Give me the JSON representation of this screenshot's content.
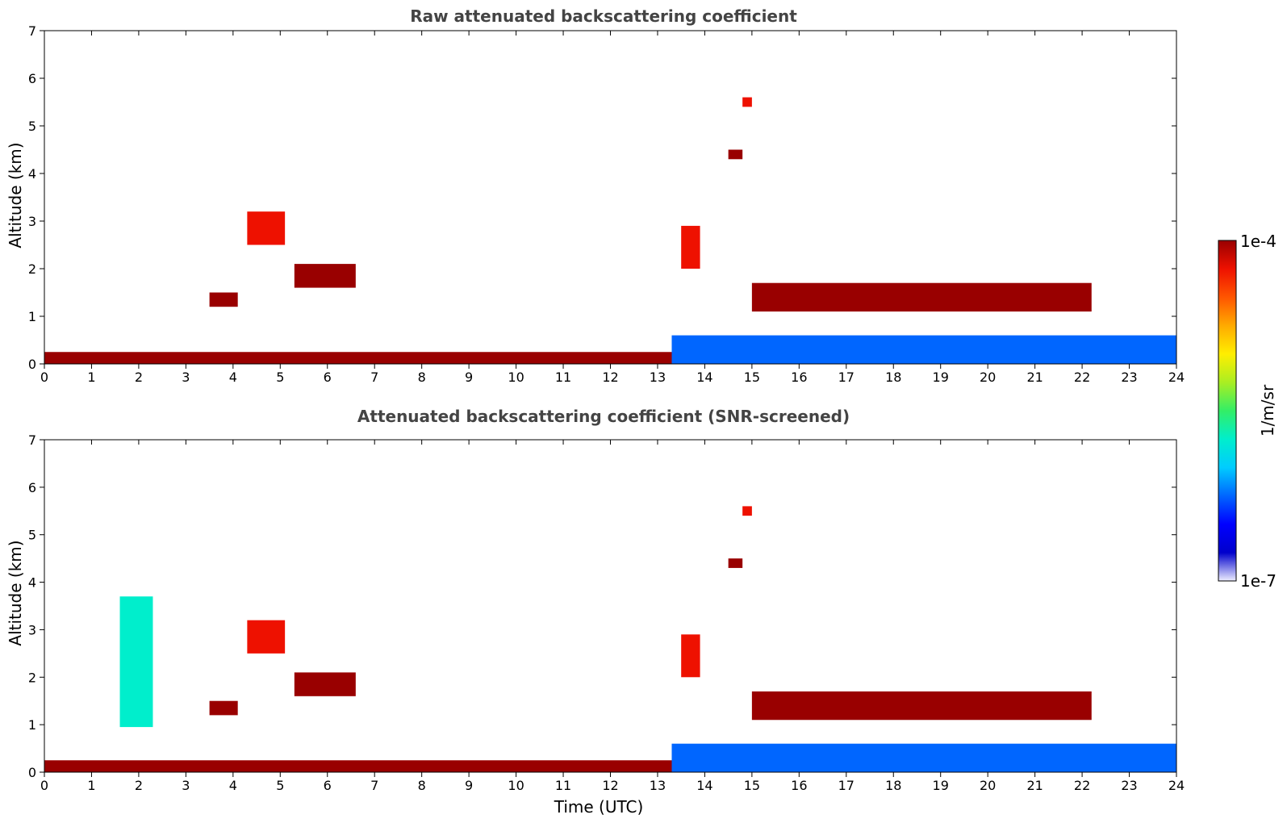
{
  "chart_data": [
    {
      "type": "heatmap",
      "title": "Raw attenuated backscattering coefficient",
      "xlabel": "",
      "ylabel": "Altitude (km)",
      "xlim": [
        0,
        24
      ],
      "ylim": [
        0,
        7
      ],
      "xticks": [
        "0",
        "1",
        "2",
        "3",
        "4",
        "5",
        "6",
        "7",
        "8",
        "9",
        "10",
        "11",
        "12",
        "13",
        "14",
        "15",
        "16",
        "17",
        "18",
        "19",
        "20",
        "21",
        "22",
        "23",
        "24"
      ],
      "yticks": [
        "0",
        "1",
        "2",
        "3",
        "4",
        "5",
        "6",
        "7"
      ],
      "features": [
        {
          "name": "surface layer",
          "start_utc": 0,
          "end_utc": 13.3,
          "altitude_km": [
            0.0,
            0.25
          ],
          "level": 0.95
        },
        {
          "name": "cloud",
          "start_utc": 3.5,
          "end_utc": 4.1,
          "altitude_km": [
            1.2,
            1.5
          ],
          "level": 0.95
        },
        {
          "name": "cloud",
          "start_utc": 4.3,
          "end_utc": 5.1,
          "altitude_km": [
            2.5,
            3.2
          ],
          "level": 0.9
        },
        {
          "name": "cloud",
          "start_utc": 5.3,
          "end_utc": 6.6,
          "altitude_km": [
            1.6,
            2.1
          ],
          "level": 0.95
        },
        {
          "name": "cloud",
          "start_utc": 13.5,
          "end_utc": 13.9,
          "altitude_km": [
            2.0,
            2.9
          ],
          "level": 0.88
        },
        {
          "name": "cloud",
          "start_utc": 14.5,
          "end_utc": 14.8,
          "altitude_km": [
            4.3,
            4.5
          ],
          "level": 0.98
        },
        {
          "name": "cloud",
          "start_utc": 14.8,
          "end_utc": 15.0,
          "altitude_km": [
            5.4,
            5.6
          ],
          "level": 0.9
        },
        {
          "name": "cloud",
          "start_utc": 15.0,
          "end_utc": 22.2,
          "altitude_km": [
            1.1,
            1.7
          ],
          "level": 0.98
        },
        {
          "name": "boundary layer",
          "start_utc": 13.3,
          "end_utc": 24,
          "altitude_km": [
            0.0,
            0.6
          ],
          "level": 0.3
        }
      ]
    },
    {
      "type": "heatmap",
      "title": "Attenuated backscattering coefficient (SNR-screened)",
      "xlabel": "Time (UTC)",
      "ylabel": "Altitude (km)",
      "xlim": [
        0,
        24
      ],
      "ylim": [
        0,
        7
      ],
      "xticks": [
        "0",
        "1",
        "2",
        "3",
        "4",
        "5",
        "6",
        "7",
        "8",
        "9",
        "10",
        "11",
        "12",
        "13",
        "14",
        "15",
        "16",
        "17",
        "18",
        "19",
        "20",
        "21",
        "22",
        "23",
        "24"
      ],
      "yticks": [
        "0",
        "1",
        "2",
        "3",
        "4",
        "5",
        "6",
        "7"
      ],
      "features": [
        {
          "name": "surface layer",
          "start_utc": 0,
          "end_utc": 13.3,
          "altitude_km": [
            0.0,
            0.25
          ],
          "level": 0.95
        },
        {
          "name": "aerosol column",
          "start_utc": 1.6,
          "end_utc": 2.3,
          "altitude_km": [
            0.95,
            3.7
          ],
          "level": 0.45
        },
        {
          "name": "cloud",
          "start_utc": 3.5,
          "end_utc": 4.1,
          "altitude_km": [
            1.2,
            1.5
          ],
          "level": 0.95
        },
        {
          "name": "cloud",
          "start_utc": 4.3,
          "end_utc": 5.1,
          "altitude_km": [
            2.5,
            3.2
          ],
          "level": 0.9
        },
        {
          "name": "cloud",
          "start_utc": 5.3,
          "end_utc": 6.6,
          "altitude_km": [
            1.6,
            2.1
          ],
          "level": 0.95
        },
        {
          "name": "cloud",
          "start_utc": 13.5,
          "end_utc": 13.9,
          "altitude_km": [
            2.0,
            2.9
          ],
          "level": 0.88
        },
        {
          "name": "cloud",
          "start_utc": 14.5,
          "end_utc": 14.8,
          "altitude_km": [
            4.3,
            4.5
          ],
          "level": 0.98
        },
        {
          "name": "cloud",
          "start_utc": 14.8,
          "end_utc": 15.0,
          "altitude_km": [
            5.4,
            5.6
          ],
          "level": 0.9
        },
        {
          "name": "cloud",
          "start_utc": 15.0,
          "end_utc": 22.2,
          "altitude_km": [
            1.1,
            1.7
          ],
          "level": 0.98
        },
        {
          "name": "boundary layer",
          "start_utc": 13.3,
          "end_utc": 24,
          "altitude_km": [
            0.0,
            0.6
          ],
          "level": 0.3
        }
      ]
    }
  ],
  "colorbar": {
    "label": "1/m/sr",
    "max_label": "1e-4",
    "min_label": "1e-7",
    "range": [
      1e-07,
      0.0001
    ],
    "scale": "log",
    "colors": [
      "#eeeeff",
      "#0000cc",
      "#0000ff",
      "#0066ff",
      "#00ccff",
      "#00eecc",
      "#33ee66",
      "#aaee22",
      "#ffee00",
      "#ffaa00",
      "#ff5500",
      "#ee1100",
      "#990000"
    ]
  }
}
